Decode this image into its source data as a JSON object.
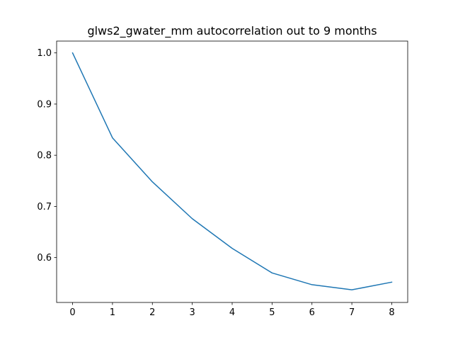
{
  "chart_data": {
    "type": "line",
    "title": "glws2_gwater_mm autocorrelation out to 9 months",
    "xlabel": "",
    "ylabel": "",
    "x": [
      0,
      1,
      2,
      3,
      4,
      5,
      6,
      7,
      8
    ],
    "series": [
      {
        "values": [
          1.0,
          0.834,
          0.748,
          0.676,
          0.618,
          0.57,
          0.547,
          0.537,
          0.552
        ],
        "color": "#1f77b4"
      }
    ],
    "xlim": [
      -0.4,
      8.4
    ],
    "ylim": [
      0.5123,
      1.0231
    ],
    "xticks": [
      0,
      1,
      2,
      3,
      4,
      5,
      6,
      7,
      8
    ],
    "yticks": [
      0.6,
      0.7,
      0.8,
      0.9,
      1.0
    ],
    "xtick_labels": [
      "0",
      "1",
      "2",
      "3",
      "4",
      "5",
      "6",
      "7",
      "8"
    ],
    "ytick_labels": [
      "0.6",
      "0.7",
      "0.8",
      "0.9",
      "1.0"
    ],
    "grid": false,
    "legend": "none"
  }
}
